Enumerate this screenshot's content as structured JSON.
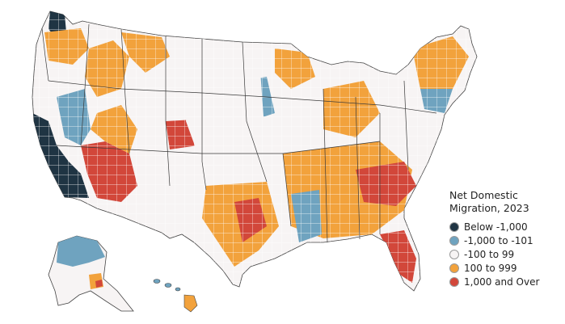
{
  "map": {
    "legend": {
      "title_line1": "Net Domestic",
      "title_line2": "Migration, 2023",
      "items": [
        {
          "label": "Below -1,000",
          "color": "#1f3443"
        },
        {
          "label": "-1,000 to -101",
          "color": "#6fa3bf"
        },
        {
          "label": "-100 to 99",
          "color": "#f7f4f4"
        },
        {
          "label": "100 to 999",
          "color": "#f2a23c"
        },
        {
          "label": "1,000 and Over",
          "color": "#d2473a"
        }
      ]
    }
  }
}
